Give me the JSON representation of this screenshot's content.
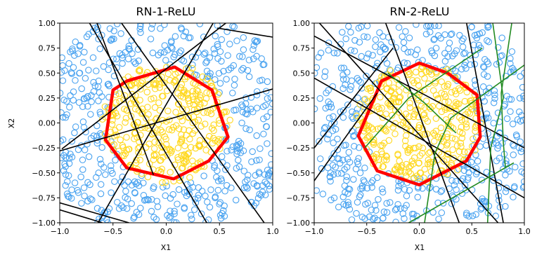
{
  "chart_data": [
    {
      "type": "scatter",
      "title": "RN-1-ReLU",
      "xlabel": "X1",
      "ylabel": "X2",
      "xlim": [
        -1.0,
        1.0
      ],
      "ylim": [
        -1.0,
        1.0
      ],
      "x_ticks": [
        "−1.0",
        "−0.5",
        "0.0",
        "0.5",
        "1.0"
      ],
      "y_ticks": [
        "1.00",
        "0.75",
        "0.50",
        "0.25",
        "0.00",
        "−0.25",
        "−0.50",
        "−0.75",
        "−1.00"
      ],
      "grid": false,
      "series": [
        {
          "role": "class-outer",
          "marker": "hollow-circle",
          "color": "#4aa3f0",
          "approx_count": 500,
          "region": "x1^2+x2^2 <= ~1.35, outside the inner cluster"
        },
        {
          "role": "class-inner",
          "marker": "hollow-circle",
          "color": "#ffd820",
          "approx_count": 350,
          "region": "x1^2+x2^2 <= ~0.32"
        }
      ],
      "decision_boundary": {
        "color": "#ff0000",
        "vertices": [
          [
            0.08,
            0.56
          ],
          [
            0.43,
            0.33
          ],
          [
            0.58,
            -0.14
          ],
          [
            0.4,
            -0.38
          ],
          [
            0.07,
            -0.56
          ],
          [
            -0.37,
            -0.45
          ],
          [
            -0.57,
            -0.17
          ],
          [
            -0.5,
            0.33
          ],
          [
            -0.37,
            0.42
          ]
        ]
      },
      "hyperplanes": [
        {
          "color": "#000000",
          "points": [
            [
              -0.72,
              1.0
            ],
            [
              0.38,
              -1.0
            ]
          ]
        },
        {
          "color": "#000000",
          "points": [
            [
              -0.42,
              1.0
            ],
            [
              0.92,
              -1.0
            ]
          ]
        },
        {
          "color": "#000000",
          "points": [
            [
              -1.0,
              -0.28
            ],
            [
              1.0,
              0.34
            ]
          ]
        },
        {
          "color": "#000000",
          "points": [
            [
              0.44,
              1.0
            ],
            [
              -0.64,
              -1.0
            ]
          ]
        },
        {
          "color": "#000000",
          "points": [
            [
              0.56,
              1.0
            ],
            [
              -0.98,
              -0.26
            ]
          ]
        },
        {
          "color": "#000000",
          "points": [
            [
              -0.65,
              1.0
            ],
            [
              -0.12,
              -0.52
            ]
          ]
        },
        {
          "color": "#000000",
          "points": [
            [
              0.48,
              0.95
            ],
            [
              1.0,
              0.86
            ]
          ]
        },
        {
          "color": "#000000",
          "points": [
            [
              -1.0,
              -0.8
            ],
            [
              -0.35,
              -1.0
            ]
          ]
        },
        {
          "color": "#000000",
          "points": [
            [
              -1.0,
              -0.87
            ],
            [
              -0.6,
              -1.0
            ]
          ]
        }
      ]
    },
    {
      "type": "scatter",
      "title": "RN-2-ReLU",
      "xlabel": "X1",
      "ylabel": "",
      "xlim": [
        -1.0,
        1.0
      ],
      "ylim": [
        -1.0,
        1.0
      ],
      "x_ticks": [
        "−1.0",
        "−0.5",
        "0.0",
        "0.5",
        "1.0"
      ],
      "y_ticks": [
        "1.00",
        "0.75",
        "0.50",
        "0.25",
        "0.00",
        "−0.25",
        "−0.50",
        "−0.75",
        "−1.00"
      ],
      "grid": false,
      "series": [
        {
          "role": "class-outer",
          "marker": "hollow-circle",
          "color": "#4aa3f0",
          "approx_count": 500,
          "region": "x1^2+x2^2 <= ~1.35, outside the inner cluster"
        },
        {
          "role": "class-inner",
          "marker": "hollow-circle",
          "color": "#ffd820",
          "approx_count": 350,
          "region": "x1^2+x2^2 <= ~0.32"
        }
      ],
      "decision_boundary": {
        "color": "#ff0000",
        "vertices": [
          [
            0.0,
            0.6
          ],
          [
            0.27,
            0.5
          ],
          [
            0.55,
            0.28
          ],
          [
            0.58,
            -0.14
          ],
          [
            0.45,
            -0.38
          ],
          [
            0.0,
            -0.62
          ],
          [
            -0.4,
            -0.48
          ],
          [
            -0.58,
            -0.13
          ],
          [
            -0.36,
            0.42
          ]
        ]
      },
      "hyperplanes": [
        {
          "color": "#000000",
          "points": [
            [
              -1.0,
              0.87
            ],
            [
              1.0,
              -0.25
            ]
          ]
        },
        {
          "color": "#000000",
          "points": [
            [
              -1.0,
              0.45
            ],
            [
              1.0,
              -0.75
            ]
          ]
        },
        {
          "color": "#000000",
          "points": [
            [
              -0.95,
              1.0
            ],
            [
              0.75,
              -1.0
            ]
          ]
        },
        {
          "color": "#000000",
          "points": [
            [
              -1.0,
              -0.25
            ],
            [
              -0.25,
              0.75
            ]
          ]
        },
        {
          "color": "#000000",
          "points": [
            [
              -0.32,
              1.0
            ],
            [
              0.38,
              -1.0
            ]
          ]
        },
        {
          "color": "#000000",
          "points": [
            [
              -1.0,
              -0.58
            ],
            [
              -0.4,
              0.3
            ]
          ]
        },
        {
          "color": "#000000",
          "points": [
            [
              0.45,
              1.0
            ],
            [
              0.8,
              -1.0
            ]
          ]
        },
        {
          "color": "#228b22",
          "points": [
            [
              0.7,
              1.0
            ],
            [
              0.8,
              0.25
            ],
            [
              0.68,
              -0.25
            ],
            [
              0.65,
              -1.0
            ]
          ]
        },
        {
          "color": "#228b22",
          "points": [
            [
              0.88,
              1.0
            ],
            [
              0.78,
              0.3
            ],
            [
              0.8,
              -0.2
            ],
            [
              0.82,
              -0.45
            ]
          ]
        },
        {
          "color": "#228b22",
          "points": [
            [
              1.0,
              0.58
            ],
            [
              0.3,
              0.05
            ],
            [
              0.15,
              -0.3
            ],
            [
              0.05,
              -1.0
            ]
          ]
        },
        {
          "color": "#228b22",
          "points": [
            [
              -0.52,
              -0.25
            ],
            [
              -0.1,
              0.25
            ],
            [
              0.6,
              0.75
            ]
          ]
        },
        {
          "color": "#228b22",
          "points": [
            [
              -0.1,
              -1.0
            ],
            [
              0.9,
              -0.4
            ]
          ]
        },
        {
          "color": "#228b22",
          "points": [
            [
              -0.3,
              0.5
            ],
            [
              0.05,
              0.2
            ],
            [
              0.35,
              -0.1
            ]
          ]
        }
      ]
    }
  ]
}
